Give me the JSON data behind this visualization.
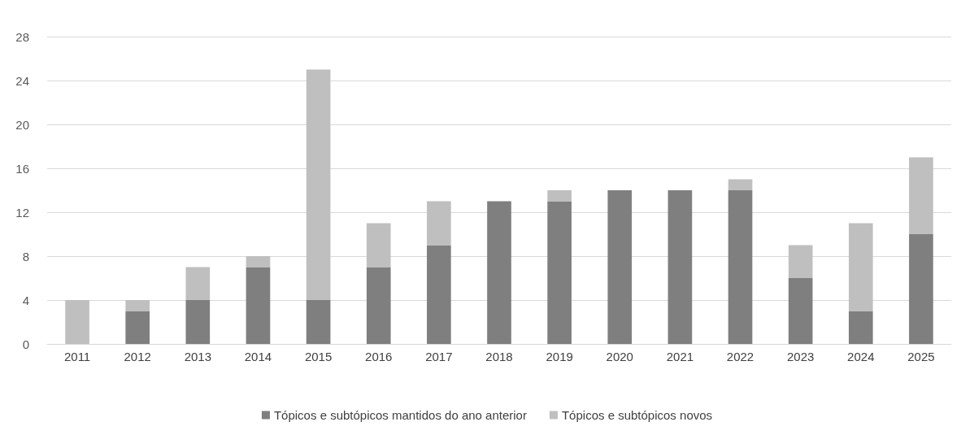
{
  "chart_data": {
    "type": "bar",
    "stacked": true,
    "categories": [
      "2011",
      "2012",
      "2013",
      "2014",
      "2015",
      "2016",
      "2017",
      "2018",
      "2019",
      "2020",
      "2021",
      "2022",
      "2023",
      "2024",
      "2025"
    ],
    "series": [
      {
        "name": "Tópicos e subtópicos mantidos do ano anterior",
        "color": "#7f7f7f",
        "values": [
          0,
          3,
          4,
          7,
          4,
          7,
          9,
          13,
          13,
          14,
          14,
          14,
          6,
          3,
          10
        ]
      },
      {
        "name": "Tópicos e subtópicos novos",
        "color": "#bfbfbf",
        "values": [
          4,
          1,
          3,
          1,
          21,
          4,
          4,
          0,
          1,
          0,
          0,
          1,
          3,
          8,
          7
        ]
      }
    ],
    "ylim": [
      0,
      28
    ],
    "yticks": [
      0,
      4,
      8,
      12,
      16,
      20,
      24,
      28
    ],
    "grid": "y",
    "legend": "bottom"
  }
}
